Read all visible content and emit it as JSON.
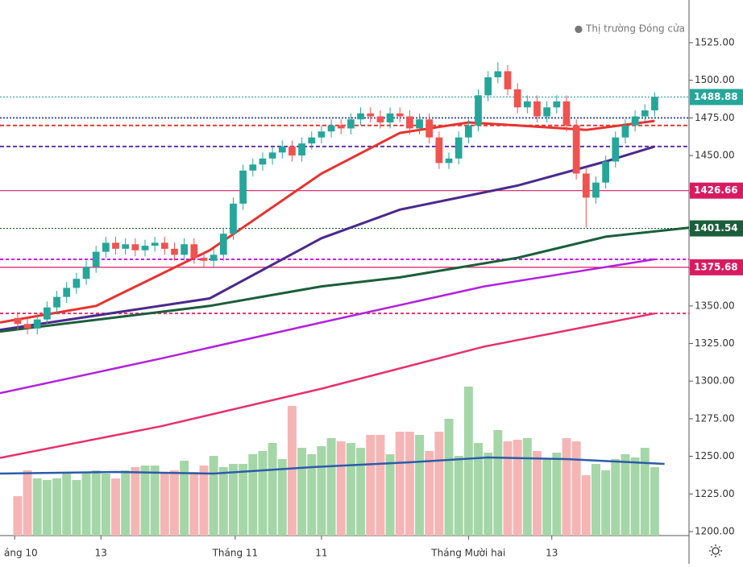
{
  "chart_data": {
    "type": "candlestick",
    "legend": "● Thị trường Đóng cửa",
    "ylim": [
      1200,
      1525
    ],
    "yticks": [
      {
        "value": 1200,
        "label": "1200.00"
      },
      {
        "value": 1225,
        "label": "1225.00"
      },
      {
        "value": 1250,
        "label": "1250.00"
      },
      {
        "value": 1275,
        "label": "1275.00"
      },
      {
        "value": 1300,
        "label": "1300.00"
      },
      {
        "value": 1325,
        "label": "1325.00"
      },
      {
        "value": 1350,
        "label": "1350.00"
      },
      {
        "value": 1375,
        "label": "1375.00"
      },
      {
        "value": 1400,
        "label": "1400.00"
      },
      {
        "value": 1425,
        "label": "1425.00"
      },
      {
        "value": 1450,
        "label": "1450.00"
      },
      {
        "value": 1475,
        "label": "1475.00"
      },
      {
        "value": 1500,
        "label": "1500.00"
      },
      {
        "value": 1525,
        "label": "1525.00"
      }
    ],
    "xlim": [
      -1.8,
      68.5
    ],
    "xticks": [
      {
        "value": -0.3,
        "label": "áng 10"
      },
      {
        "value": 8.5,
        "label": "13"
      },
      {
        "value": 22.2,
        "label": "Tháng 11"
      },
      {
        "value": 31,
        "label": "11"
      },
      {
        "value": 46,
        "label": "Tháng Mười hai"
      },
      {
        "value": 54.5,
        "label": "13"
      }
    ],
    "up_color": "#26a69a",
    "down_color": "#ef5350",
    "open": [
      1342,
      1338,
      1335,
      1341,
      1349,
      1356,
      1362,
      1368,
      1376,
      1386,
      1392,
      1388,
      1391,
      1387,
      1390,
      1392,
      1388,
      1384,
      1391,
      1382,
      1380,
      1384,
      1398,
      1418,
      1440,
      1444,
      1448,
      1452,
      1456,
      1450,
      1458,
      1462,
      1466,
      1470,
      1468,
      1474,
      1478,
      1476,
      1472,
      1478,
      1476,
      1468,
      1474,
      1462,
      1445,
      1448,
      1462,
      1470,
      1490,
      1502,
      1506,
      1494,
      1482,
      1486,
      1476,
      1482,
      1486,
      1470,
      1438,
      1422,
      1432,
      1446,
      1462,
      1470,
      1476,
      1480
    ],
    "high": [
      1346,
      1342,
      1345,
      1353,
      1360,
      1366,
      1372,
      1380,
      1390,
      1396,
      1396,
      1395,
      1395,
      1394,
      1396,
      1396,
      1392,
      1395,
      1395,
      1386,
      1388,
      1402,
      1422,
      1444,
      1448,
      1452,
      1456,
      1460,
      1460,
      1462,
      1466,
      1470,
      1474,
      1474,
      1478,
      1482,
      1482,
      1480,
      1482,
      1482,
      1480,
      1478,
      1478,
      1466,
      1452,
      1466,
      1474,
      1494,
      1506,
      1512,
      1510,
      1498,
      1490,
      1490,
      1486,
      1490,
      1490,
      1474,
      1442,
      1436,
      1450,
      1466,
      1474,
      1480,
      1484,
      1492
    ],
    "low": [
      1334,
      1331,
      1331,
      1337,
      1345,
      1352,
      1358,
      1364,
      1372,
      1382,
      1384,
      1384,
      1383,
      1383,
      1386,
      1384,
      1380,
      1380,
      1378,
      1376,
      1376,
      1380,
      1394,
      1414,
      1436,
      1440,
      1444,
      1448,
      1446,
      1446,
      1454,
      1458,
      1462,
      1464,
      1464,
      1470,
      1472,
      1468,
      1468,
      1472,
      1464,
      1464,
      1458,
      1441,
      1441,
      1444,
      1458,
      1466,
      1486,
      1498,
      1490,
      1478,
      1478,
      1472,
      1472,
      1478,
      1466,
      1434,
      1402,
      1418,
      1428,
      1442,
      1458,
      1466,
      1472,
      1476
    ],
    "close": [
      1338,
      1335,
      1341,
      1349,
      1356,
      1362,
      1368,
      1376,
      1386,
      1392,
      1388,
      1391,
      1387,
      1390,
      1392,
      1388,
      1384,
      1391,
      1382,
      1380,
      1384,
      1398,
      1418,
      1440,
      1444,
      1448,
      1452,
      1456,
      1450,
      1458,
      1462,
      1466,
      1470,
      1468,
      1474,
      1478,
      1476,
      1472,
      1478,
      1476,
      1468,
      1474,
      1462,
      1445,
      1448,
      1462,
      1470,
      1490,
      1502,
      1506,
      1494,
      1482,
      1486,
      1476,
      1482,
      1486,
      1470,
      1438,
      1422,
      1432,
      1446,
      1462,
      1470,
      1476,
      1480,
      1489
    ],
    "volume": [
      22,
      38,
      33,
      32,
      33,
      36,
      32,
      37,
      38,
      36,
      33,
      38,
      40,
      41,
      41,
      36,
      38,
      44,
      37,
      41,
      47,
      40,
      42,
      42,
      48,
      50,
      55,
      45,
      78,
      52,
      48,
      53,
      58,
      56,
      55,
      52,
      60,
      60,
      48,
      62,
      62,
      60,
      50,
      62,
      70,
      47,
      90,
      55,
      49,
      63,
      56,
      57,
      58,
      50,
      45,
      49,
      58,
      56,
      35,
      42,
      38,
      45,
      48,
      46,
      52,
      40
    ],
    "volume_lim": [
      0,
      100
    ],
    "volume_up_color": "#a5d6a7",
    "volume_down_color": "#f5b5b5",
    "volume_ma": {
      "color": "#2a5caa",
      "x": [
        -1.8,
        10,
        20,
        30,
        40,
        48,
        56,
        66
      ],
      "values": [
        36,
        37,
        36,
        40,
        43,
        46,
        45,
        42
      ]
    },
    "lines": [
      {
        "color": "#e8332f",
        "width": 3,
        "x": [
          -1.8,
          8,
          19.6,
          31,
          39,
          46,
          51,
          58,
          65
        ],
        "values": [
          1339,
          1350,
          1387,
          1438,
          1465,
          1472,
          1470,
          1467,
          1473
        ]
      },
      {
        "color": "#4b2a8c",
        "width": 3,
        "x": [
          -1.8,
          19.6,
          31,
          39,
          51,
          60,
          65
        ],
        "values": [
          1334,
          1355,
          1395,
          1414,
          1430,
          1446,
          1456
        ]
      },
      {
        "color": "#1b5e3b",
        "width": 3,
        "x": [
          -1.8,
          19.6,
          31,
          39,
          51,
          60,
          68.5
        ],
        "values": [
          1333,
          1350,
          1363,
          1369,
          1382,
          1396,
          1402
        ]
      },
      {
        "color": "#b320e0",
        "width": 2.5,
        "x": [
          -1.8,
          14.6,
          31,
          47.6,
          65
        ],
        "values": [
          1292,
          1315,
          1339,
          1363,
          1381
        ]
      },
      {
        "color": "#e8306a",
        "width": 2.5,
        "x": [
          -1.8,
          14.6,
          31,
          47.6,
          65
        ],
        "values": [
          1249,
          1270,
          1295,
          1323,
          1345
        ]
      }
    ],
    "levels": [
      {
        "value": 1475,
        "color": "#3f51b5",
        "dash": "2 2"
      },
      {
        "value": 1470,
        "color": "#e53935",
        "dash": "5 3"
      },
      {
        "value": 1456,
        "color": "#5e35b1",
        "dash": "5 3"
      },
      {
        "value": 1381,
        "color": "#d500f9",
        "dash": "4 3"
      },
      {
        "value": 1345,
        "color": "#e8306a",
        "dash": "4 3"
      }
    ],
    "price_labels": [
      {
        "value": 1488.88,
        "label": "1488.88",
        "color": "#26a69a"
      },
      {
        "value": 1426.66,
        "label": "1426.66",
        "color": "#d81b60"
      },
      {
        "value": 1401.54,
        "label": "1401.54",
        "color": "#1b5e3b"
      },
      {
        "value": 1375.68,
        "label": "1375.68",
        "color": "#d81b60"
      }
    ]
  }
}
